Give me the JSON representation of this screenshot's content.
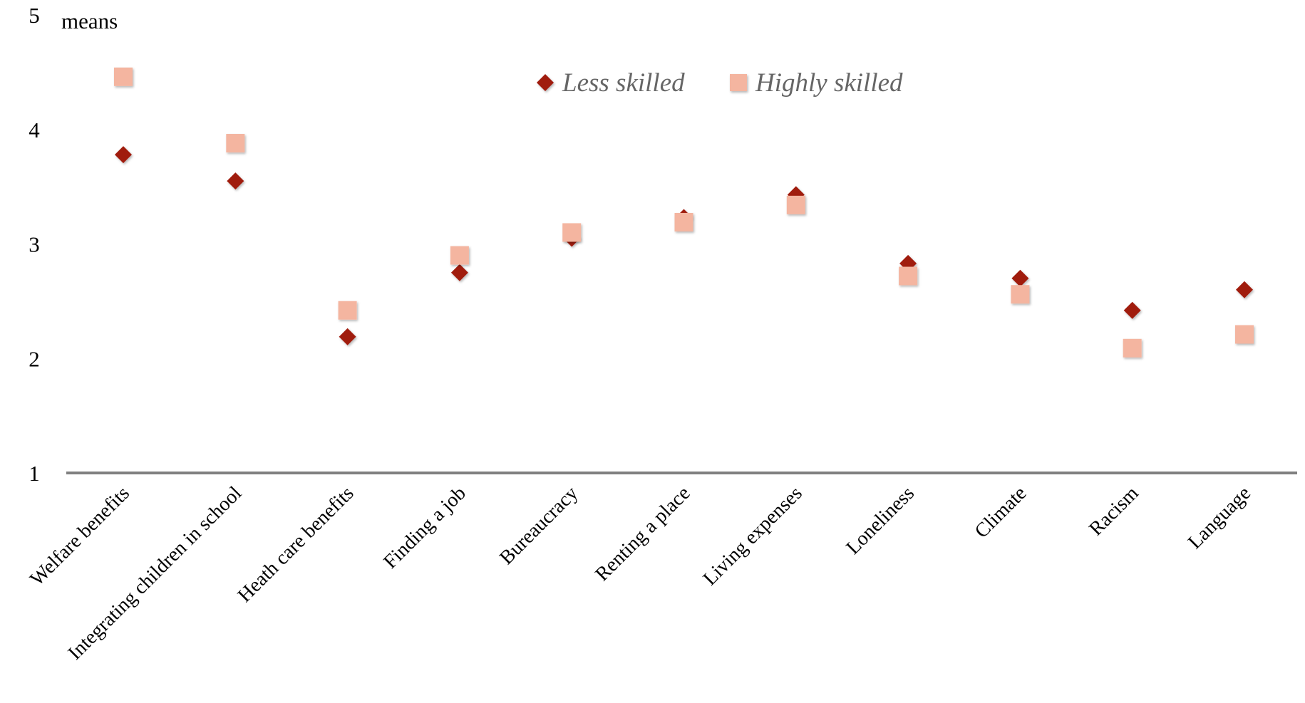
{
  "chart_data": {
    "type": "scatter",
    "ylabel": "means",
    "ylim": [
      1,
      5
    ],
    "yticks": [
      "1",
      "2",
      "3",
      "4",
      "5"
    ],
    "categories": [
      "Welfare benefits",
      "Integrating children in school",
      "Heath care benefits",
      "Finding a job",
      "Bureaucracy",
      "Renting a place",
      "Living expenses",
      "Loneliness",
      "Climate",
      "Racism",
      "Language"
    ],
    "series": [
      {
        "name": "Less skilled",
        "marker": "diamond",
        "color": "#a01c10",
        "values": [
          3.78,
          3.55,
          2.19,
          2.75,
          3.05,
          3.23,
          3.43,
          2.83,
          2.7,
          2.42,
          2.6
        ]
      },
      {
        "name": "Highly skilled",
        "marker": "square",
        "color": "#f4b5a0",
        "values": [
          4.46,
          3.88,
          2.42,
          2.9,
          3.1,
          3.19,
          3.34,
          2.72,
          2.56,
          2.09,
          2.21
        ]
      }
    ],
    "legend_position": "top-center",
    "grid": false
  }
}
